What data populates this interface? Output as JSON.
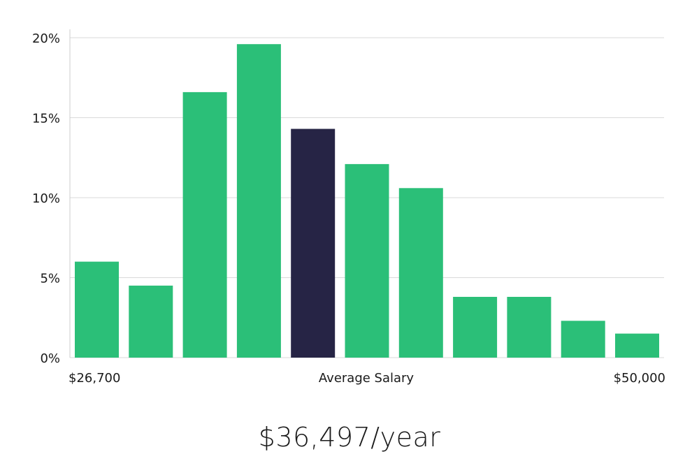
{
  "chart_data": {
    "type": "bar",
    "title": "",
    "ylabel": "",
    "xlabel": "Average Salary",
    "ylim": [
      0,
      20
    ],
    "y_ticks": [
      {
        "value": 0,
        "label": "0%"
      },
      {
        "value": 5,
        "label": "5%"
      },
      {
        "value": 10,
        "label": "10%"
      },
      {
        "value": 15,
        "label": "15%"
      },
      {
        "value": 20,
        "label": "20%"
      }
    ],
    "x_min_label": "$26,700",
    "x_max_label": "$50,000",
    "x_center_label": "Average Salary",
    "values": [
      6.0,
      4.5,
      16.6,
      19.6,
      14.3,
      12.1,
      10.6,
      3.8,
      3.8,
      2.3,
      1.5
    ],
    "highlight_index": 4,
    "colors": {
      "bar": "#2bbf78",
      "highlight": "#262445",
      "grid": "#d9d9d9",
      "axis": "#cccccc"
    }
  },
  "summary": {
    "salary_text": "$36,497/year"
  }
}
